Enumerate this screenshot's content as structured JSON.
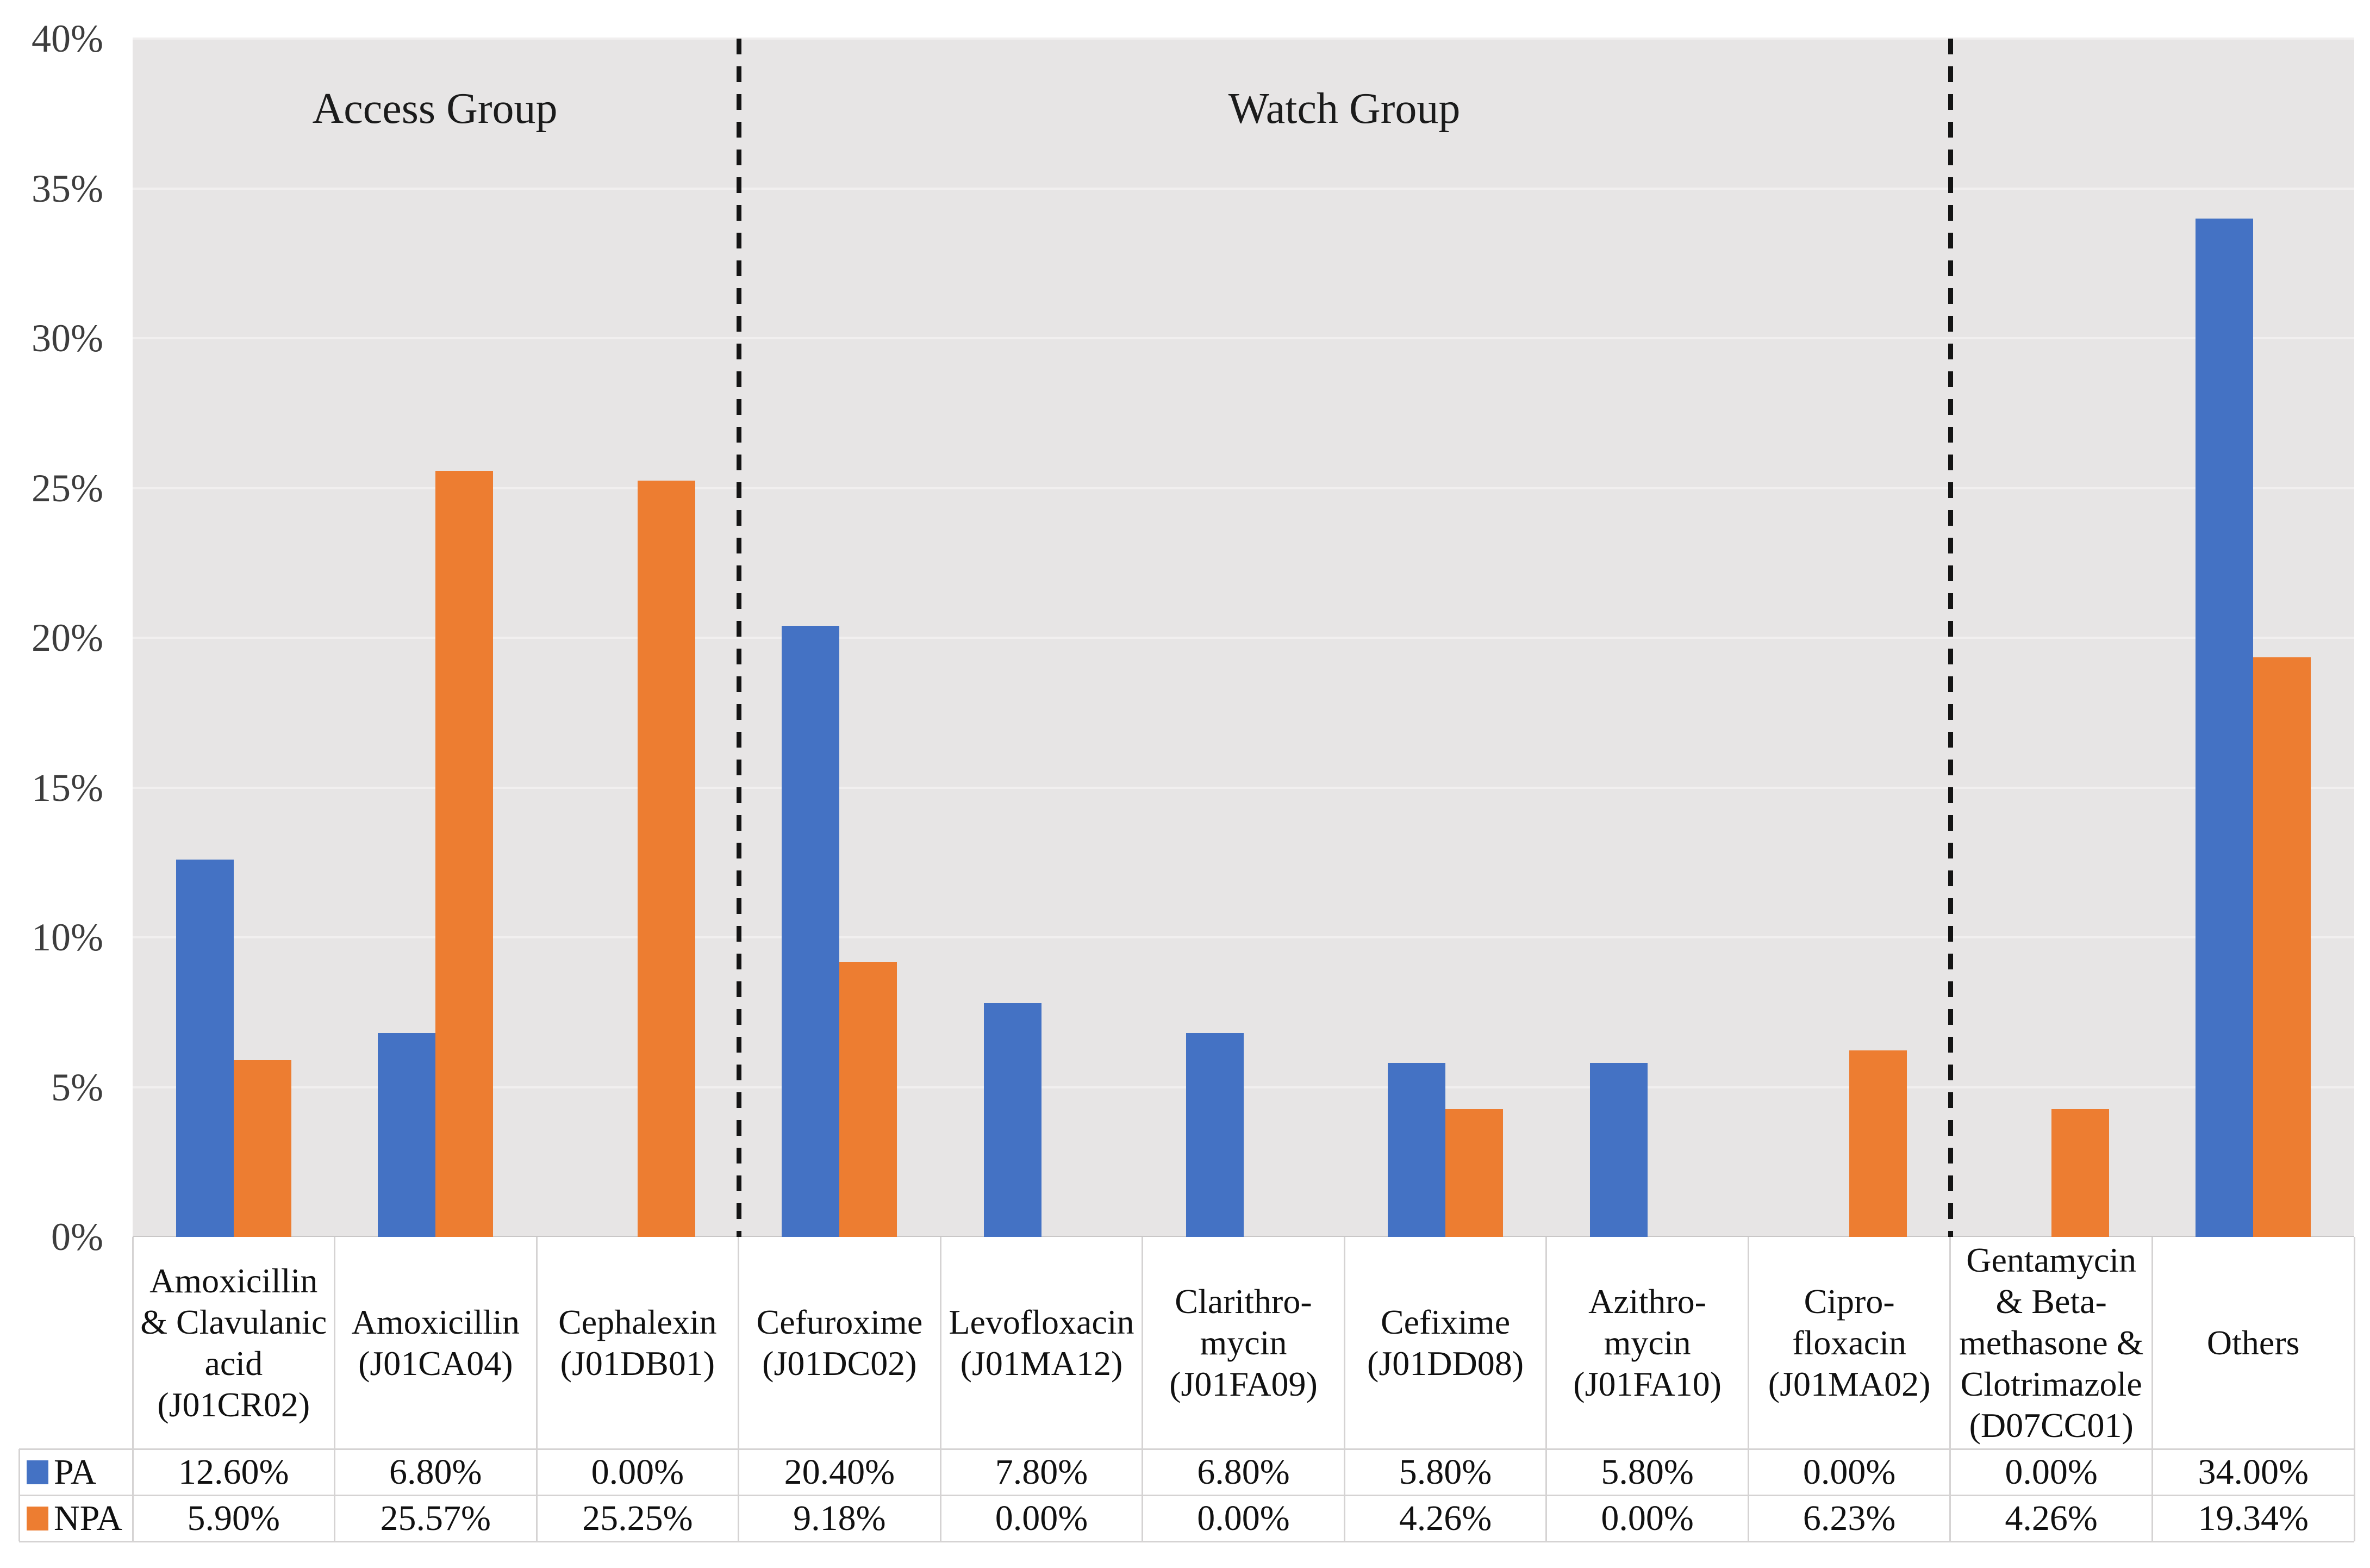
{
  "chart_data": {
    "type": "bar",
    "title": "",
    "y_axis": {
      "ticks": [
        "40%",
        "35%",
        "30%",
        "25%",
        "20%",
        "15%",
        "10%",
        "5%",
        "0%"
      ],
      "min": 0,
      "max": 40,
      "step": 5,
      "unit": "percent"
    },
    "grid": true,
    "plot_background": "#E7E5E5",
    "legend_position": "table-left",
    "group_labels": [
      {
        "label": "Access Group",
        "start_category": 0,
        "end_category": 3
      },
      {
        "label": "Watch Group",
        "start_category": 3,
        "end_category": 9
      }
    ],
    "separators_after_category": [
      3,
      9
    ],
    "categories": [
      {
        "name": "Amoxicillin & Clavulanic acid (J01CR02)",
        "lines": [
          "Amoxicillin",
          "& Clavulanic",
          "acid",
          "(J01CR02)"
        ]
      },
      {
        "name": "Amoxicillin (J01CA04)",
        "lines": [
          "Amoxicillin",
          "(J01CA04)"
        ]
      },
      {
        "name": "Cephalexin (J01DB01)",
        "lines": [
          "Cephalexin",
          "(J01DB01)"
        ]
      },
      {
        "name": "Cefuroxime (J01DC02)",
        "lines": [
          "Cefuroxime",
          "(J01DC02)"
        ]
      },
      {
        "name": "Levofloxacin (J01MA12)",
        "lines": [
          "Levofloxacin",
          "(J01MA12)"
        ]
      },
      {
        "name": "Clarithromycin (J01FA09)",
        "lines": [
          "Clarithro-",
          "mycin",
          "(J01FA09)"
        ]
      },
      {
        "name": "Cefixime (J01DD08)",
        "lines": [
          "Cefixime",
          "(J01DD08)"
        ]
      },
      {
        "name": "Azithromycin (J01FA10)",
        "lines": [
          "Azithro-",
          "mycin",
          "(J01FA10)"
        ]
      },
      {
        "name": "Ciprofloxacin (J01MA02)",
        "lines": [
          "Cipro-",
          "floxacin",
          "(J01MA02)"
        ]
      },
      {
        "name": "Gentamycin & Beta-methasone & Clotrimazole (D07CC01)",
        "lines": [
          "Gentamycin",
          "& Beta-",
          "methasone &",
          "Clotrimazole",
          "(D07CC01)"
        ]
      },
      {
        "name": "Others",
        "lines": [
          "Others"
        ]
      }
    ],
    "series": [
      {
        "name": "PA",
        "color": "#4472C4",
        "values": [
          12.6,
          6.8,
          0.0,
          20.4,
          7.8,
          6.8,
          5.8,
          5.8,
          0.0,
          0.0,
          34.0
        ],
        "display": [
          "12.60%",
          "6.80%",
          "0.00%",
          "20.40%",
          "7.80%",
          "6.80%",
          "5.80%",
          "5.80%",
          "0.00%",
          "0.00%",
          "34.00%"
        ]
      },
      {
        "name": "NPA",
        "color": "#ED7D31",
        "values": [
          5.9,
          25.57,
          25.25,
          9.18,
          0.0,
          0.0,
          4.26,
          0.0,
          6.23,
          4.26,
          19.34
        ],
        "display": [
          "5.90%",
          "25.57%",
          "25.25%",
          "9.18%",
          "0.00%",
          "0.00%",
          "4.26%",
          "0.00%",
          "6.23%",
          "4.26%",
          "19.34%"
        ]
      }
    ]
  },
  "colors": {
    "pa_blue": "#4472C4",
    "npa_orange": "#ED7D31",
    "plot_bg": "#E7E5E5",
    "gridline": "#F1EFEF",
    "table_border": "#D5D3D3",
    "separator": "#141414"
  }
}
